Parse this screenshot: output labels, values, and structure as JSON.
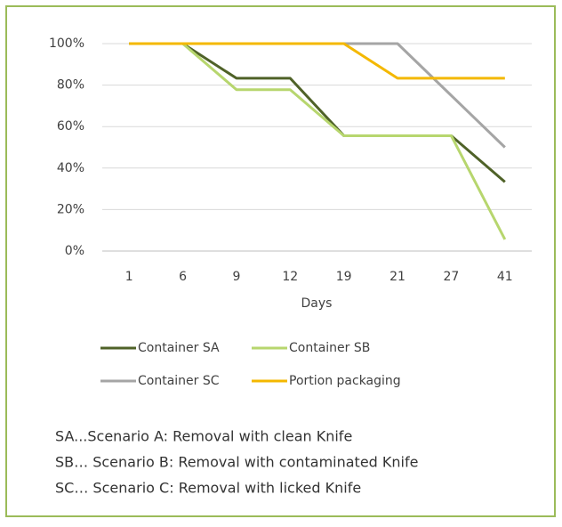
{
  "chart_data": {
    "type": "line",
    "x_label": "Days",
    "categories": [
      "1",
      "6",
      "9",
      "12",
      "19",
      "21",
      "27",
      "41"
    ],
    "series": [
      {
        "name": "Container SA",
        "color": "#4f6228",
        "values": [
          100,
          100,
          83.3,
          83.3,
          55.6,
          55.6,
          55.6,
          33.3
        ]
      },
      {
        "name": "Container SB",
        "color": "#b7d66e",
        "values": [
          100,
          100,
          77.8,
          77.8,
          55.6,
          55.6,
          55.6,
          5.6
        ]
      },
      {
        "name": "Container SC",
        "color": "#a5a5a5",
        "values": [
          100,
          100,
          100,
          100,
          100,
          100,
          75,
          50
        ]
      },
      {
        "name": "Portion packaging",
        "color": "#f4b800",
        "values": [
          100,
          100,
          100,
          100,
          100,
          83.3,
          83.3,
          83.3
        ]
      }
    ],
    "ylim": [
      0,
      100
    ],
    "yticks": [
      {
        "value": 0,
        "label": "0%"
      },
      {
        "value": 20,
        "label": "20%"
      },
      {
        "value": 40,
        "label": "40%"
      },
      {
        "value": 60,
        "label": "60%"
      },
      {
        "value": 80,
        "label": "80%"
      },
      {
        "value": 100,
        "label": "100%"
      }
    ],
    "grid": true,
    "legend": "bottom",
    "annotations": [
      "SA...Scenario A: Removal with clean Knife",
      "SB… Scenario B: Removal with contaminated Knife",
      "SC… Scenario C: Removal with licked Knife"
    ]
  }
}
